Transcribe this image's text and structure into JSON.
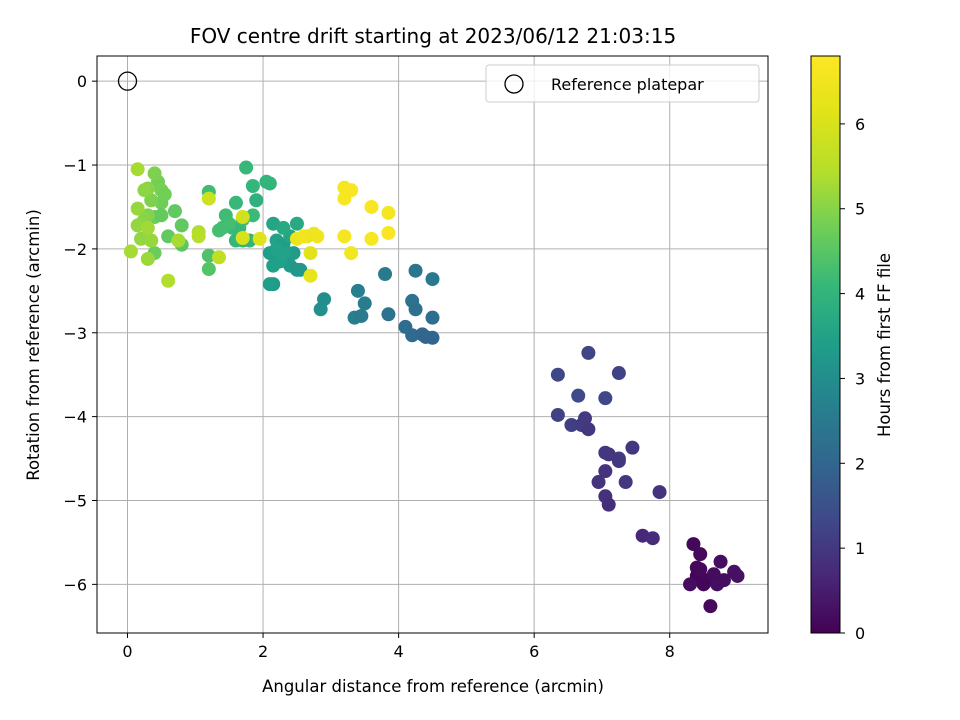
{
  "chart_data": {
    "type": "scatter",
    "title": "FOV centre drift starting at 2023/06/12 21:03:15",
    "xlabel": "Angular distance from reference (arcmin)",
    "ylabel": "Rotation from reference (arcmin)",
    "xlim": [
      -0.45,
      9.45
    ],
    "ylim": [
      -6.58,
      0.3
    ],
    "xticks": [
      0,
      2,
      4,
      6,
      8
    ],
    "yticks": [
      0,
      -1,
      -2,
      -3,
      -4,
      -5,
      -6
    ],
    "grid": true,
    "legend": {
      "position": "top-right",
      "entries": [
        "Reference platepar"
      ]
    },
    "reference_point": {
      "x": 0,
      "y": 0,
      "label": "Reference platepar"
    },
    "colorbar": {
      "label": "Hours from first FF file",
      "colormap": "viridis",
      "range": [
        0,
        6.8
      ],
      "ticks": [
        0,
        1,
        2,
        3,
        4,
        5,
        6
      ]
    },
    "points": [
      {
        "x": 8.35,
        "y": -5.52,
        "c": 0.1
      },
      {
        "x": 8.45,
        "y": -5.64,
        "c": 0.15
      },
      {
        "x": 8.4,
        "y": -5.8,
        "c": 0.12
      },
      {
        "x": 8.4,
        "y": -5.9,
        "c": 0.05
      },
      {
        "x": 8.3,
        "y": -6.0,
        "c": 0.2
      },
      {
        "x": 8.55,
        "y": -5.95,
        "c": 0.1
      },
      {
        "x": 8.65,
        "y": -5.88,
        "c": 0.18
      },
      {
        "x": 8.75,
        "y": -5.73,
        "c": 0.22
      },
      {
        "x": 8.7,
        "y": -6.0,
        "c": 0.25
      },
      {
        "x": 8.6,
        "y": -6.26,
        "c": 0.15
      },
      {
        "x": 8.95,
        "y": -5.85,
        "c": 0.3
      },
      {
        "x": 9.0,
        "y": -5.9,
        "c": 0.28
      },
      {
        "x": 8.5,
        "y": -6.0,
        "c": 0.08
      },
      {
        "x": 8.8,
        "y": -5.95,
        "c": 0.2
      },
      {
        "x": 8.45,
        "y": -5.82,
        "c": 0.12
      },
      {
        "x": 7.6,
        "y": -5.42,
        "c": 0.7
      },
      {
        "x": 7.75,
        "y": -5.45,
        "c": 0.75
      },
      {
        "x": 7.85,
        "y": -4.9,
        "c": 0.9
      },
      {
        "x": 7.45,
        "y": -4.37,
        "c": 1.0
      },
      {
        "x": 7.35,
        "y": -4.78,
        "c": 0.95
      },
      {
        "x": 7.25,
        "y": -4.5,
        "c": 1.1
      },
      {
        "x": 7.25,
        "y": -3.48,
        "c": 1.2
      },
      {
        "x": 6.8,
        "y": -3.24,
        "c": 1.25
      },
      {
        "x": 6.35,
        "y": -3.5,
        "c": 1.3
      },
      {
        "x": 6.65,
        "y": -3.75,
        "c": 1.35
      },
      {
        "x": 7.05,
        "y": -3.78,
        "c": 1.3
      },
      {
        "x": 6.35,
        "y": -3.98,
        "c": 1.2
      },
      {
        "x": 6.55,
        "y": -4.1,
        "c": 1.15
      },
      {
        "x": 6.7,
        "y": -4.1,
        "c": 1.1
      },
      {
        "x": 6.75,
        "y": -4.02,
        "c": 1.05
      },
      {
        "x": 6.8,
        "y": -4.15,
        "c": 1.0
      },
      {
        "x": 7.05,
        "y": -4.43,
        "c": 1.0
      },
      {
        "x": 7.1,
        "y": -4.45,
        "c": 0.95
      },
      {
        "x": 7.05,
        "y": -4.65,
        "c": 0.9
      },
      {
        "x": 6.95,
        "y": -4.78,
        "c": 0.9
      },
      {
        "x": 7.05,
        "y": -4.95,
        "c": 0.85
      },
      {
        "x": 7.1,
        "y": -5.05,
        "c": 0.8
      },
      {
        "x": 7.25,
        "y": -4.53,
        "c": 1.0
      },
      {
        "x": 4.25,
        "y": -2.26,
        "c": 2.4
      },
      {
        "x": 4.5,
        "y": -2.36,
        "c": 2.45
      },
      {
        "x": 3.8,
        "y": -2.3,
        "c": 2.5
      },
      {
        "x": 3.4,
        "y": -2.5,
        "c": 2.6
      },
      {
        "x": 3.5,
        "y": -2.65,
        "c": 2.55
      },
      {
        "x": 3.35,
        "y": -2.82,
        "c": 2.6
      },
      {
        "x": 3.45,
        "y": -2.8,
        "c": 2.5
      },
      {
        "x": 3.85,
        "y": -2.78,
        "c": 2.35
      },
      {
        "x": 4.2,
        "y": -2.62,
        "c": 2.3
      },
      {
        "x": 4.25,
        "y": -2.72,
        "c": 2.25
      },
      {
        "x": 4.5,
        "y": -2.82,
        "c": 2.2
      },
      {
        "x": 4.1,
        "y": -2.93,
        "c": 2.15
      },
      {
        "x": 4.2,
        "y": -3.03,
        "c": 2.1
      },
      {
        "x": 4.35,
        "y": -3.02,
        "c": 2.05
      },
      {
        "x": 4.4,
        "y": -3.05,
        "c": 2.0
      },
      {
        "x": 4.5,
        "y": -3.06,
        "c": 2.0
      },
      {
        "x": 2.9,
        "y": -2.6,
        "c": 3.0
      },
      {
        "x": 2.85,
        "y": -2.72,
        "c": 3.05
      },
      {
        "x": 2.15,
        "y": -1.7,
        "c": 3.6
      },
      {
        "x": 2.2,
        "y": -1.9,
        "c": 3.5
      },
      {
        "x": 2.3,
        "y": -1.95,
        "c": 3.4
      },
      {
        "x": 2.35,
        "y": -2.1,
        "c": 3.3
      },
      {
        "x": 2.4,
        "y": -2.2,
        "c": 3.3
      },
      {
        "x": 2.45,
        "y": -2.05,
        "c": 3.35
      },
      {
        "x": 2.5,
        "y": -2.25,
        "c": 3.2
      },
      {
        "x": 2.55,
        "y": -2.25,
        "c": 3.25
      },
      {
        "x": 2.1,
        "y": -2.05,
        "c": 3.4
      },
      {
        "x": 2.15,
        "y": -2.2,
        "c": 3.45
      },
      {
        "x": 2.25,
        "y": -2.15,
        "c": 3.45
      },
      {
        "x": 2.3,
        "y": -2.05,
        "c": 3.5
      },
      {
        "x": 2.2,
        "y": -2.0,
        "c": 3.5
      },
      {
        "x": 2.15,
        "y": -2.42,
        "c": 3.3
      },
      {
        "x": 2.1,
        "y": -2.42,
        "c": 3.4
      },
      {
        "x": 2.4,
        "y": -1.85,
        "c": 3.6
      },
      {
        "x": 2.3,
        "y": -1.75,
        "c": 3.7
      },
      {
        "x": 2.5,
        "y": -1.7,
        "c": 3.7
      },
      {
        "x": 1.9,
        "y": -1.42,
        "c": 3.9
      },
      {
        "x": 2.05,
        "y": -1.2,
        "c": 4.0
      },
      {
        "x": 2.1,
        "y": -1.22,
        "c": 4.0
      },
      {
        "x": 1.85,
        "y": -1.25,
        "c": 4.05
      },
      {
        "x": 1.75,
        "y": -1.03,
        "c": 4.1
      },
      {
        "x": 1.6,
        "y": -1.45,
        "c": 4.1
      },
      {
        "x": 1.2,
        "y": -1.32,
        "c": 4.2
      },
      {
        "x": 1.45,
        "y": -1.6,
        "c": 4.2
      },
      {
        "x": 1.55,
        "y": -1.75,
        "c": 4.15
      },
      {
        "x": 1.65,
        "y": -1.75,
        "c": 4.1
      },
      {
        "x": 1.7,
        "y": -1.9,
        "c": 4.0
      },
      {
        "x": 1.8,
        "y": -1.9,
        "c": 4.0
      },
      {
        "x": 1.6,
        "y": -1.9,
        "c": 4.05
      },
      {
        "x": 1.85,
        "y": -1.6,
        "c": 4.15
      },
      {
        "x": 1.35,
        "y": -1.78,
        "c": 4.3
      },
      {
        "x": 1.4,
        "y": -1.75,
        "c": 4.25
      },
      {
        "x": 1.5,
        "y": -1.7,
        "c": 4.25
      },
      {
        "x": 1.7,
        "y": -1.65,
        "c": 4.2
      },
      {
        "x": 1.2,
        "y": -2.08,
        "c": 4.4
      },
      {
        "x": 1.2,
        "y": -2.24,
        "c": 4.45
      },
      {
        "x": 0.8,
        "y": -1.72,
        "c": 4.6
      },
      {
        "x": 0.8,
        "y": -1.95,
        "c": 4.55
      },
      {
        "x": 0.6,
        "y": -1.85,
        "c": 4.6
      },
      {
        "x": 0.4,
        "y": -2.05,
        "c": 4.7
      },
      {
        "x": 0.45,
        "y": -1.2,
        "c": 4.8
      },
      {
        "x": 0.4,
        "y": -1.1,
        "c": 4.9
      },
      {
        "x": 0.5,
        "y": -1.3,
        "c": 4.85
      },
      {
        "x": 0.5,
        "y": -1.45,
        "c": 4.75
      },
      {
        "x": 0.55,
        "y": -1.35,
        "c": 4.8
      },
      {
        "x": 0.4,
        "y": -1.62,
        "c": 4.7
      },
      {
        "x": 0.5,
        "y": -1.6,
        "c": 4.65
      },
      {
        "x": 0.35,
        "y": -1.42,
        "c": 4.9
      },
      {
        "x": 0.3,
        "y": -1.28,
        "c": 5.0
      },
      {
        "x": 0.25,
        "y": -1.3,
        "c": 5.05
      },
      {
        "x": 0.7,
        "y": -1.55,
        "c": 4.6
      },
      {
        "x": 0.3,
        "y": -1.6,
        "c": 4.95
      },
      {
        "x": 0.25,
        "y": -1.65,
        "c": 5.0
      },
      {
        "x": 0.2,
        "y": -1.7,
        "c": 5.05
      },
      {
        "x": 0.15,
        "y": -1.72,
        "c": 5.1
      },
      {
        "x": 0.15,
        "y": -1.52,
        "c": 5.15
      },
      {
        "x": 0.2,
        "y": -1.88,
        "c": 5.1
      },
      {
        "x": 0.35,
        "y": -1.9,
        "c": 5.15
      },
      {
        "x": 0.3,
        "y": -2.12,
        "c": 5.2
      },
      {
        "x": 0.15,
        "y": -1.05,
        "c": 5.3
      },
      {
        "x": 0.05,
        "y": -2.03,
        "c": 5.3
      },
      {
        "x": 0.6,
        "y": -2.38,
        "c": 5.4
      },
      {
        "x": 0.75,
        "y": -1.9,
        "c": 5.3
      },
      {
        "x": 0.3,
        "y": -1.75,
        "c": 5.25
      },
      {
        "x": 1.05,
        "y": -1.8,
        "c": 5.4
      },
      {
        "x": 1.05,
        "y": -1.85,
        "c": 5.5
      },
      {
        "x": 1.35,
        "y": -2.1,
        "c": 5.6
      },
      {
        "x": 1.2,
        "y": -1.4,
        "c": 5.8
      },
      {
        "x": 1.7,
        "y": -1.62,
        "c": 5.9
      },
      {
        "x": 1.7,
        "y": -1.87,
        "c": 6.0
      },
      {
        "x": 1.95,
        "y": -1.88,
        "c": 6.1
      },
      {
        "x": 2.7,
        "y": -2.05,
        "c": 6.2
      },
      {
        "x": 2.65,
        "y": -1.85,
        "c": 6.3
      },
      {
        "x": 2.5,
        "y": -1.88,
        "c": 6.4
      },
      {
        "x": 2.6,
        "y": -1.85,
        "c": 6.5
      },
      {
        "x": 2.8,
        "y": -1.85,
        "c": 6.5
      },
      {
        "x": 2.75,
        "y": -1.82,
        "c": 6.45
      },
      {
        "x": 2.7,
        "y": -2.32,
        "c": 6.3
      },
      {
        "x": 3.2,
        "y": -1.27,
        "c": 6.6
      },
      {
        "x": 3.3,
        "y": -1.3,
        "c": 6.7
      },
      {
        "x": 3.2,
        "y": -1.4,
        "c": 6.65
      },
      {
        "x": 3.6,
        "y": -1.5,
        "c": 6.7
      },
      {
        "x": 3.85,
        "y": -1.57,
        "c": 6.6
      },
      {
        "x": 3.2,
        "y": -1.85,
        "c": 6.6
      },
      {
        "x": 3.6,
        "y": -1.88,
        "c": 6.65
      },
      {
        "x": 3.85,
        "y": -1.81,
        "c": 6.7
      },
      {
        "x": 3.3,
        "y": -2.05,
        "c": 6.55
      }
    ]
  }
}
